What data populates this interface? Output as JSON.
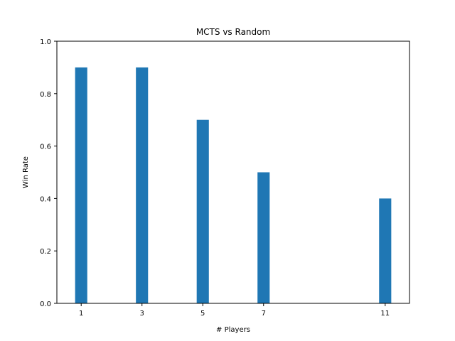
{
  "chart_data": {
    "type": "bar",
    "title": "MCTS vs Random",
    "xlabel": "# Players",
    "ylabel": "Win Rate",
    "x": [
      1,
      3,
      5,
      7,
      11
    ],
    "values": [
      0.9,
      0.9,
      0.7,
      0.5,
      0.4
    ],
    "bar_width": 0.4,
    "xlim": [
      0.2,
      11.8
    ],
    "ylim": [
      0,
      1.0
    ],
    "xticks": [
      "1",
      "3",
      "5",
      "7",
      "11"
    ],
    "yticks": [
      "0.0",
      "0.2",
      "0.4",
      "0.6",
      "0.8",
      "1.0"
    ],
    "grid": false,
    "bar_color": "#1f77b4"
  }
}
